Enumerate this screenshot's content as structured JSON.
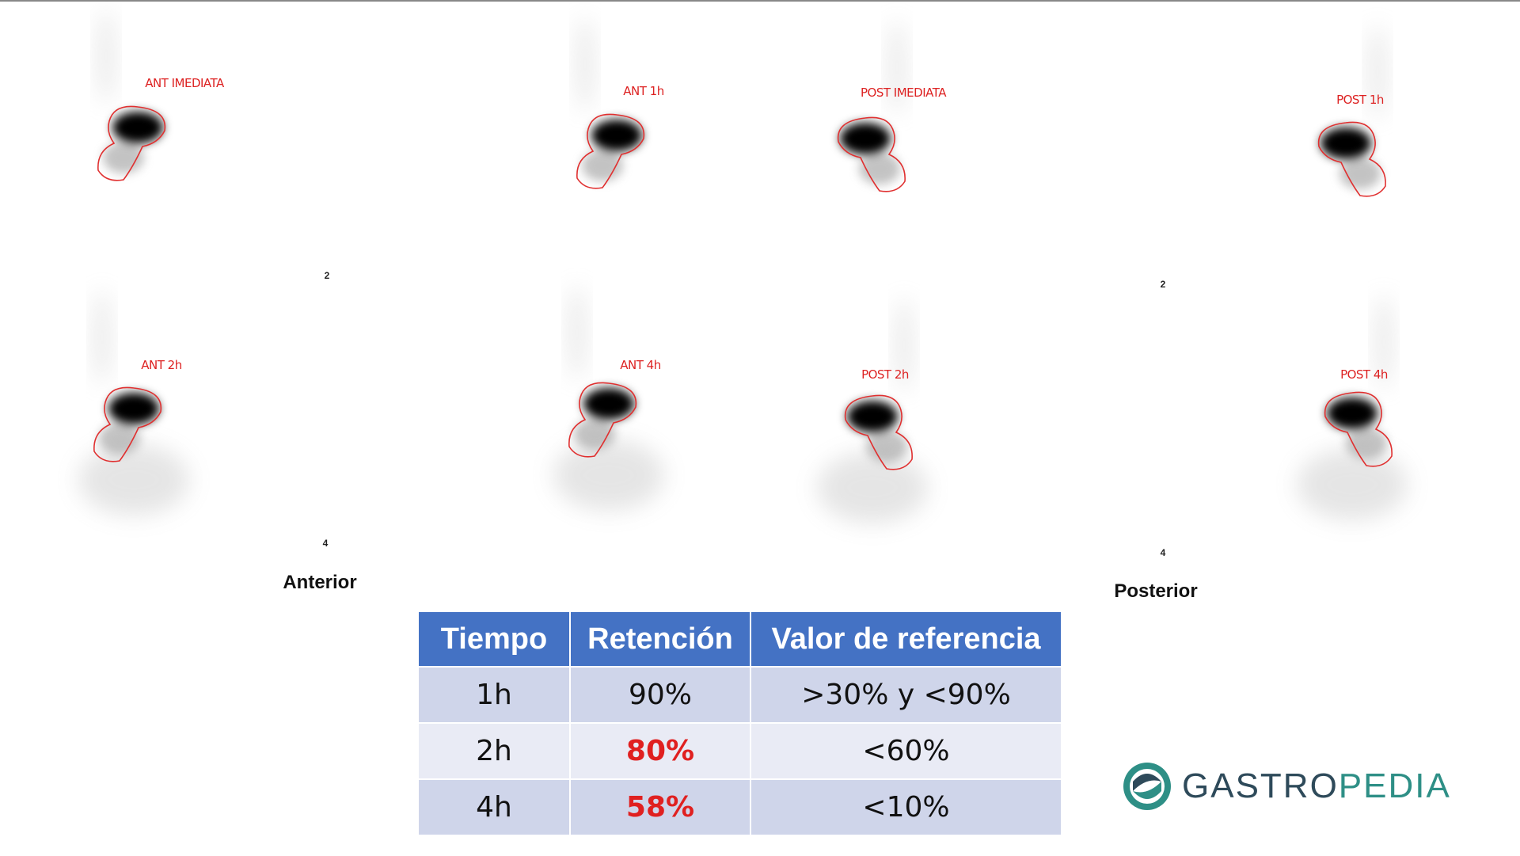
{
  "images": {
    "top": [
      "ANT IMEDIATA",
      "ANT 1h",
      "POST IMEDIATA",
      "POST 1h"
    ],
    "bottom": [
      "ANT 2h",
      "ANT 4h",
      "POST 2h",
      "POST 4h"
    ],
    "markers": [
      "2",
      "2",
      "4",
      "4"
    ],
    "captions": [
      "Anterior",
      "Posterior"
    ]
  },
  "table": {
    "header": [
      "Tiempo",
      "Retención",
      "Valor de referencia"
    ],
    "rows": [
      [
        "1h",
        "90%",
        ">30% y <90%"
      ],
      [
        "2h",
        "80%",
        "<60%"
      ],
      [
        "4h",
        "58%",
        "<10%"
      ]
    ]
  },
  "logo": {
    "part1": "GASTRO",
    "part2": "PEDIA"
  }
}
